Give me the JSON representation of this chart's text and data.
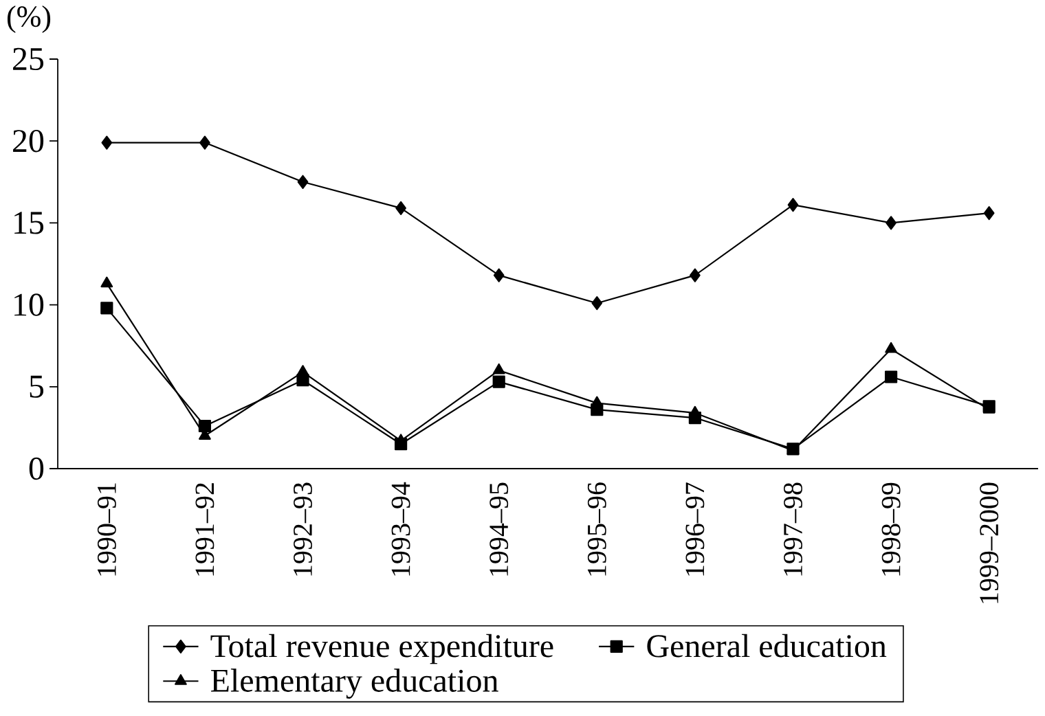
{
  "chart_data": {
    "type": "line",
    "ylabel": "(%)",
    "categories": [
      "1990–91",
      "1991–92",
      "1992–93",
      "1993–94",
      "1994–95",
      "1995–96",
      "1996–97",
      "1997–98",
      "1998–99",
      "1999–2000"
    ],
    "series": [
      {
        "name": "Total revenue expenditure",
        "color": "#000000",
        "marker": "diamond",
        "values": [
          19.9,
          19.9,
          17.5,
          15.9,
          11.8,
          10.1,
          11.8,
          16.1,
          15.0,
          15.6
        ]
      },
      {
        "name": "General education",
        "color": "#000000",
        "marker": "square",
        "values": [
          9.8,
          2.6,
          5.4,
          1.5,
          5.3,
          3.6,
          3.1,
          1.2,
          5.6,
          3.8
        ]
      },
      {
        "name": "Elementary education",
        "color": "#000000",
        "marker": "triangle",
        "values": [
          11.3,
          2.0,
          5.9,
          1.7,
          6.0,
          4.0,
          3.4,
          1.1,
          7.3,
          3.6
        ]
      }
    ],
    "ylim": [
      0,
      25
    ],
    "yticks": [
      0,
      5,
      10,
      15,
      20,
      25
    ],
    "legend": "bottom",
    "line_style": "solid"
  }
}
